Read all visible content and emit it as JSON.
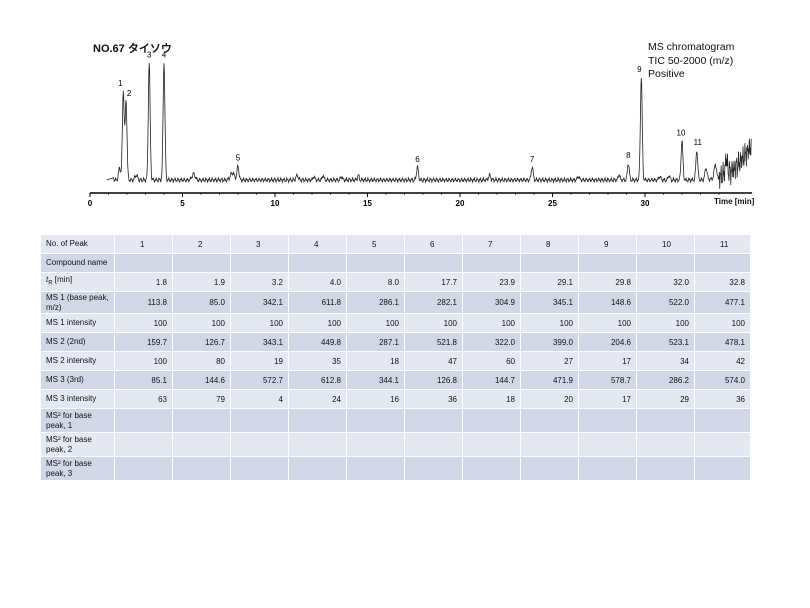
{
  "header": {
    "title": "NO.67 タイソウ",
    "info_lines": [
      "MS chromatogram",
      "TIC 50-2000 (m/z)",
      "Positive"
    ]
  },
  "chart_data": {
    "type": "line",
    "title": "NO.67 タイソウ",
    "xlabel": "Time [min]",
    "xlim": [
      0,
      36
    ],
    "xticks": [
      0,
      5,
      10,
      15,
      20,
      25,
      30
    ],
    "peaks": [
      {
        "label": "1",
        "x": 1.8,
        "height": 0.74
      },
      {
        "label": "2",
        "x": 1.95,
        "height": 0.66
      },
      {
        "label": "3",
        "x": 3.2,
        "height": 0.98
      },
      {
        "label": "4",
        "x": 4.0,
        "height": 0.98
      },
      {
        "label": "5",
        "x": 8.0,
        "height": 0.12
      },
      {
        "label": "6",
        "x": 17.7,
        "height": 0.11
      },
      {
        "label": "7",
        "x": 23.9,
        "height": 0.11
      },
      {
        "label": "8",
        "x": 29.1,
        "height": 0.14
      },
      {
        "label": "9",
        "x": 29.8,
        "height": 0.86
      },
      {
        "label": "10",
        "x": 32.0,
        "height": 0.33
      },
      {
        "label": "11",
        "x": 32.8,
        "height": 0.25
      }
    ]
  },
  "table": {
    "columns": [
      "No. of Peak",
      "1",
      "2",
      "3",
      "4",
      "5",
      "6",
      "7",
      "8",
      "9",
      "10",
      "11"
    ],
    "rows": [
      {
        "label": "Compound name",
        "values": [
          "",
          "",
          "",
          "",
          "",
          "",
          "",
          "",
          "",
          "",
          ""
        ]
      },
      {
        "label_prefix": "t",
        "label_sub": "R",
        "label_suffix": " [min]",
        "values": [
          "1.8",
          "1.9",
          "3.2",
          "4.0",
          "8.0",
          "17.7",
          "23.9",
          "29.1",
          "29.8",
          "32.0",
          "32.8"
        ]
      },
      {
        "label": "MS 1 (base peak, m/z)",
        "values": [
          "113.8",
          "85.0",
          "342.1",
          "611.8",
          "286.1",
          "282.1",
          "304.9",
          "345.1",
          "148.6",
          "522.0",
          "477.1"
        ]
      },
      {
        "label": "MS 1 intensity",
        "values": [
          "100",
          "100",
          "100",
          "100",
          "100",
          "100",
          "100",
          "100",
          "100",
          "100",
          "100"
        ]
      },
      {
        "label": "MS 2 (2nd)",
        "values": [
          "159.7",
          "126.7",
          "343.1",
          "449.8",
          "287.1",
          "521.8",
          "322.0",
          "399.0",
          "204.6",
          "523.1",
          "478.1"
        ]
      },
      {
        "label": "MS 2 intensity",
        "values": [
          "100",
          "80",
          "19",
          "35",
          "18",
          "47",
          "60",
          "27",
          "17",
          "34",
          "42"
        ]
      },
      {
        "label": "MS 3 (3rd)",
        "values": [
          "85.1",
          "144.6",
          "572.7",
          "612.8",
          "344.1",
          "126.8",
          "144.7",
          "471.9",
          "578.7",
          "286.2",
          "574.0"
        ]
      },
      {
        "label": "MS 3 intensity",
        "values": [
          "63",
          "79",
          "4",
          "24",
          "16",
          "36",
          "18",
          "20",
          "17",
          "29",
          "36"
        ]
      },
      {
        "label": "MS² for base peak, 1",
        "values": [
          "",
          "",
          "",
          "",
          "",
          "",
          "",
          "",
          "",
          "",
          ""
        ]
      },
      {
        "label": "MS² for base peak, 2",
        "values": [
          "",
          "",
          "",
          "",
          "",
          "",
          "",
          "",
          "",
          "",
          ""
        ]
      },
      {
        "label": "MS² for base peak, 3",
        "values": [
          "",
          "",
          "",
          "",
          "",
          "",
          "",
          "",
          "",
          "",
          ""
        ]
      }
    ]
  }
}
